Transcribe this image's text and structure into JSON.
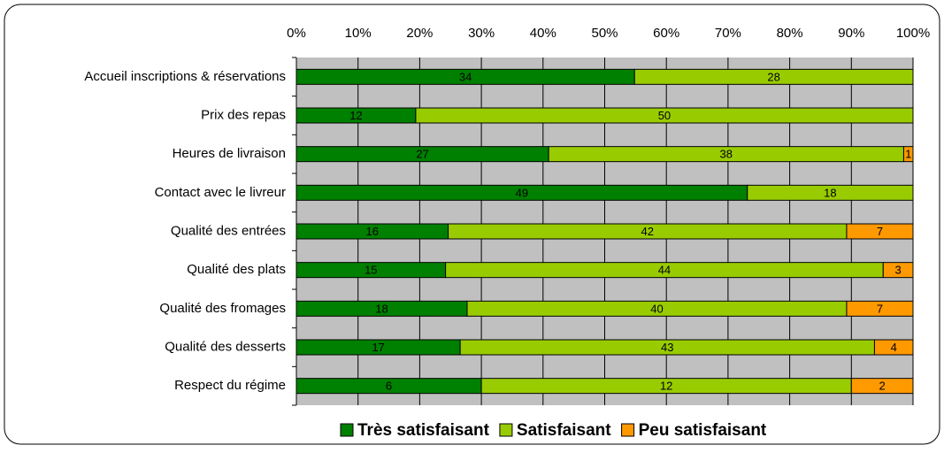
{
  "chart_data": {
    "type": "bar",
    "orientation": "horizontal",
    "stacking": "percent",
    "categories": [
      "Accueil inscriptions & réservations",
      "Prix des repas",
      "Heures de livraison",
      "Contact avec le livreur",
      "Qualité des entrées",
      "Qualité des plats",
      "Qualité des fromages",
      "Qualité des desserts",
      "Respect du régime"
    ],
    "series": [
      {
        "name": "Très satisfaisant",
        "color": "#008000",
        "values": [
          34,
          12,
          27,
          49,
          16,
          15,
          18,
          17,
          6
        ]
      },
      {
        "name": "Satisfaisant",
        "color": "#99cc00",
        "values": [
          28,
          50,
          38,
          18,
          42,
          44,
          40,
          43,
          12
        ]
      },
      {
        "name": "Peu satisfaisant",
        "color": "#ff9900",
        "values": [
          null,
          null,
          1,
          null,
          7,
          3,
          7,
          4,
          2
        ]
      }
    ],
    "xlim": [
      0,
      100
    ],
    "xticks": [
      {
        "value": 0,
        "label": "0%"
      },
      {
        "value": 10,
        "label": "10%"
      },
      {
        "value": 20,
        "label": "20%"
      },
      {
        "value": 30,
        "label": "30%"
      },
      {
        "value": 40,
        "label": "40%"
      },
      {
        "value": 50,
        "label": "50%"
      },
      {
        "value": 60,
        "label": "60%"
      },
      {
        "value": 70,
        "label": "70%"
      },
      {
        "value": 80,
        "label": "80%"
      },
      {
        "value": 90,
        "label": "90%"
      },
      {
        "value": 100,
        "label": "100%"
      }
    ],
    "grid": true,
    "legend": "bottom",
    "plot_background": "#c0c0c0"
  }
}
